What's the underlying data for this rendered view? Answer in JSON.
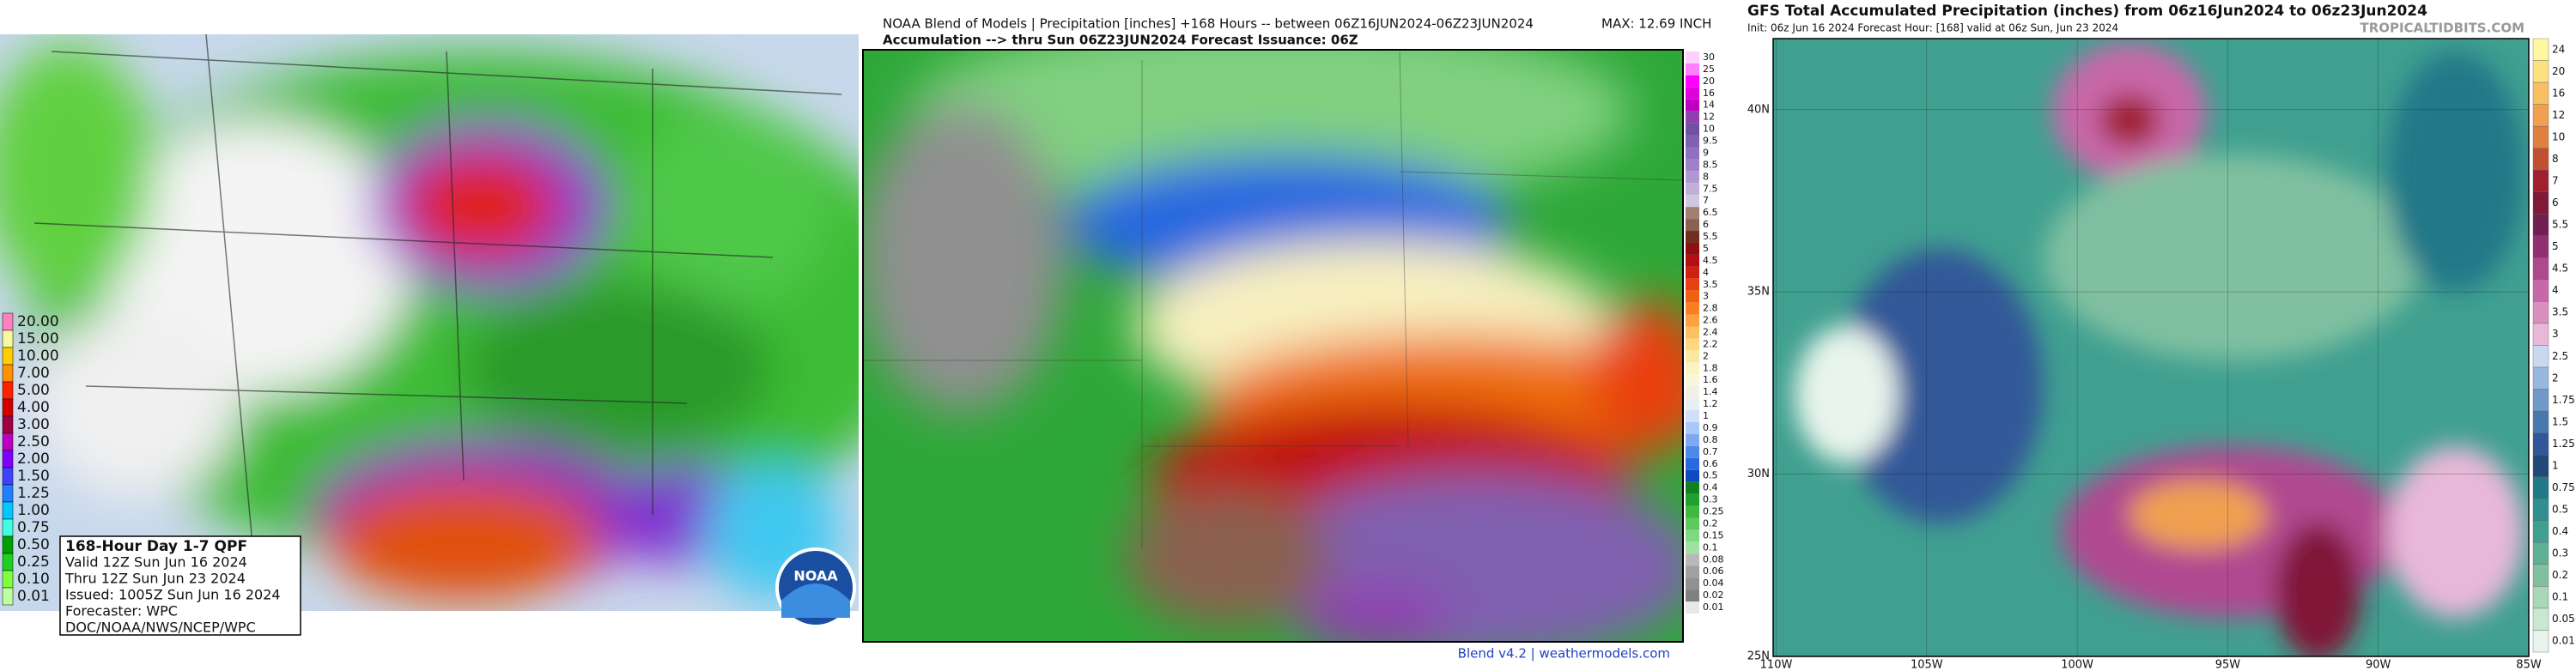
{
  "wpc": {
    "box_lines": [
      "168-Hour Day 1-7 QPF",
      "Valid 12Z Sun Jun 16 2024",
      "Thru 12Z Sun Jun 23 2024",
      "Issued: 1005Z Sun Jun 16 2024",
      "Forecaster: WPC",
      "DOC/NOAA/NWS/NCEP/WPC"
    ],
    "logo": "NOAA",
    "legend_labels": [
      "20.00",
      "15.00",
      "10.00",
      "7.00",
      "5.00",
      "4.00",
      "3.00",
      "2.50",
      "2.00",
      "1.50",
      "1.25",
      "1.00",
      "0.75",
      "0.50",
      "0.25",
      "0.10",
      "0.01"
    ],
    "legend_colors": [
      "#ff80c0",
      "#f8f8a0",
      "#ffd000",
      "#ff9000",
      "#ff2000",
      "#d00000",
      "#a00040",
      "#c000c0",
      "#8000ff",
      "#4040ff",
      "#2080ff",
      "#00c8ff",
      "#40ffe0",
      "#00a000",
      "#20d020",
      "#80ff40",
      "#c0ffa0"
    ]
  },
  "nbm": {
    "title": "NOAA Blend of Models | Precipitation [inches] +168 Hours -- between 06Z16JUN2024-06Z23JUN2024",
    "max": "MAX: 12.69 INCH",
    "subtitle": "Accumulation --> thru Sun 06Z23JUN2024   Forecast Issuance: 06Z",
    "footer": "Blend v4.2 | weathermodels.com",
    "legend_labels": [
      "30",
      "25",
      "20",
      "16",
      "14",
      "12",
      "10",
      "9.5",
      "9",
      "8.5",
      "8",
      "7.5",
      "7",
      "6.5",
      "6",
      "5.5",
      "5",
      "4.5",
      "4",
      "3.5",
      "3",
      "2.8",
      "2.6",
      "2.4",
      "2.2",
      "2",
      "1.8",
      "1.6",
      "1.4",
      "1.2",
      "1",
      "0.9",
      "0.8",
      "0.7",
      "0.6",
      "0.5",
      "0.4",
      "0.3",
      "0.25",
      "0.2",
      "0.15",
      "0.1",
      "0.08",
      "0.06",
      "0.04",
      "0.02",
      "0.01"
    ],
    "legend_colors": [
      "#ffd0ff",
      "#ff80ff",
      "#ff00ff",
      "#e000e0",
      "#c000c0",
      "#9040b0",
      "#7050a0",
      "#8060b0",
      "#9070c0",
      "#a080c8",
      "#b098d0",
      "#c0b0d8",
      "#d0c8e0",
      "#a08070",
      "#8a6050",
      "#703020",
      "#901010",
      "#b01010",
      "#d02010",
      "#e84010",
      "#f06010",
      "#f88020",
      "#fca040",
      "#fcc060",
      "#fcd880",
      "#fce8a0",
      "#fcf4c0",
      "#f8f8d8",
      "#f0f0e8",
      "#e8eef4",
      "#d0e0f8",
      "#a8c8f8",
      "#80a8f0",
      "#5088e8",
      "#2868e0",
      "#1048c0",
      "#108020",
      "#20a030",
      "#40b840",
      "#60c860",
      "#80d880",
      "#a0e0a0",
      "#b8b8b8",
      "#a0a0a0",
      "#909090",
      "#808080",
      "#e8e8e8"
    ]
  },
  "gfs": {
    "title": "GFS Total Accumulated Precipitation (inches) from 06z16Jun2024 to 06z23Jun2024",
    "subtitle": "Init: 06z Jun 16 2024   Forecast Hour: [168]   valid at 06z Sun, Jun 23 2024",
    "brand": "TROPICALTIDBITS.COM",
    "legend_labels": [
      "24",
      "20",
      "16",
      "12",
      "10",
      "8",
      "7",
      "6",
      "5.5",
      "5",
      "4.5",
      "4",
      "3.5",
      "3",
      "2.5",
      "2",
      "1.75",
      "1.5",
      "1.25",
      "1",
      "0.75",
      "0.5",
      "0.4",
      "0.3",
      "0.2",
      "0.1",
      "0.05",
      "0.01"
    ],
    "legend_colors": [
      "#fff8a0",
      "#fde080",
      "#f8c060",
      "#f0a050",
      "#e08040",
      "#c05030",
      "#a02030",
      "#801838",
      "#702050",
      "#903070",
      "#b04890",
      "#c868a8",
      "#d890c0",
      "#e8b8d8",
      "#c8d8f0",
      "#98b8e0",
      "#7098c8",
      "#4878b0",
      "#305898",
      "#204878",
      "#207888",
      "#309090",
      "#40a090",
      "#60b098",
      "#80c0a0",
      "#a8d8b8",
      "#c8e8d0",
      "#e8f4ec"
    ],
    "xlim": [
      -110.1,
      -85
    ],
    "ylim": [
      25,
      41.95
    ],
    "xticks": [
      {
        "value": -110,
        "label": "110W"
      },
      {
        "value": -105,
        "label": "105W"
      },
      {
        "value": -100,
        "label": "100W"
      },
      {
        "value": -95,
        "label": "95W"
      },
      {
        "value": -90,
        "label": "90W"
      },
      {
        "value": -85,
        "label": "85W"
      }
    ],
    "yticks": [
      {
        "value": 40,
        "label": "40N"
      },
      {
        "value": 35,
        "label": "35N"
      },
      {
        "value": 30,
        "label": "30N"
      },
      {
        "value": 25,
        "label": "25N"
      }
    ]
  }
}
